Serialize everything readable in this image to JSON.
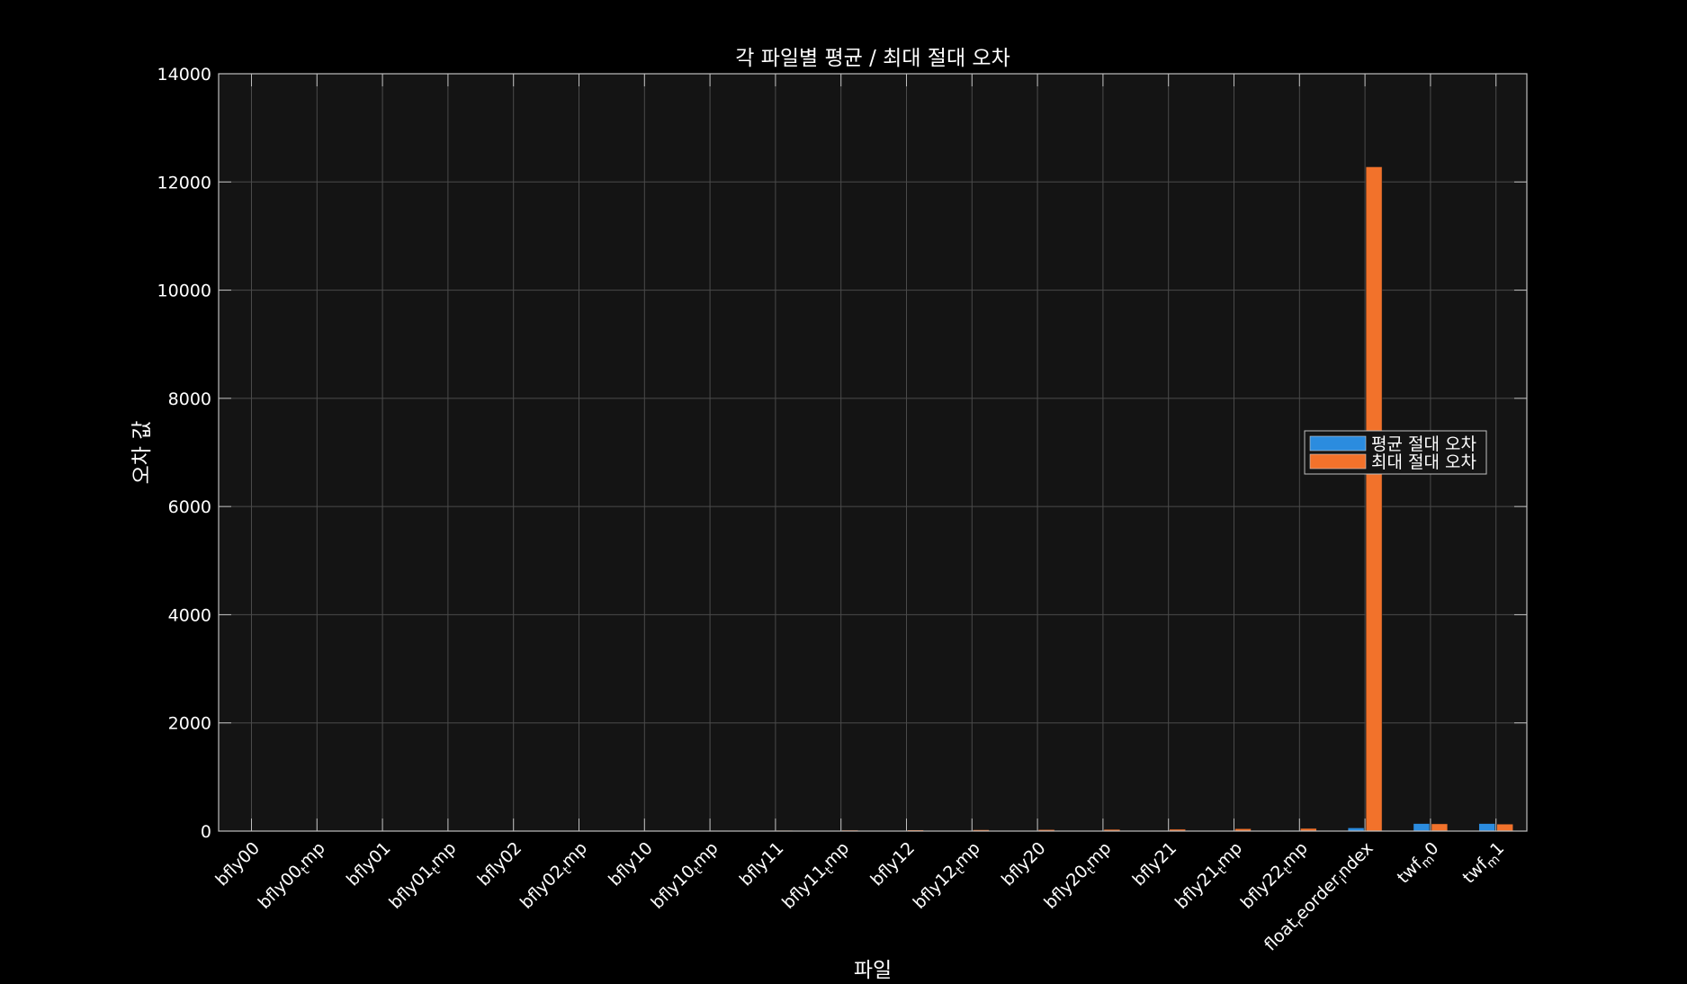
{
  "chart_data": {
    "type": "bar",
    "title": "각 파일별 평균 / 최대 절대 오차",
    "xlabel": "파일",
    "ylabel": "오차 값",
    "ylim": [
      0,
      14000
    ],
    "yticks": [
      0,
      2000,
      4000,
      6000,
      8000,
      10000,
      12000,
      14000
    ],
    "grid": true,
    "legend_position": "right",
    "categories": [
      "bfly00",
      "bfly00_tmp",
      "bfly01",
      "bfly01_tmp",
      "bfly02",
      "bfly02_tmp",
      "bfly10",
      "bfly10_tmp",
      "bfly11",
      "bfly11_tmp",
      "bfly12",
      "bfly12_tmp",
      "bfly20",
      "bfly20_tmp",
      "bfly21",
      "bfly21_tmp",
      "bfly22_tmp",
      "float_reorder_index",
      "twf_m0",
      "twf_m1"
    ],
    "tick_labels": [
      {
        "text": "bfly00"
      },
      {
        "text": "bfly00",
        "sub": "t",
        "rest": "mp"
      },
      {
        "text": "bfly01"
      },
      {
        "text": "bfly01",
        "sub": "t",
        "rest": "mp"
      },
      {
        "text": "bfly02"
      },
      {
        "text": "bfly02",
        "sub": "t",
        "rest": "mp"
      },
      {
        "text": "bfly10"
      },
      {
        "text": "bfly10",
        "sub": "t",
        "rest": "mp"
      },
      {
        "text": "bfly11"
      },
      {
        "text": "bfly11",
        "sub": "t",
        "rest": "mp"
      },
      {
        "text": "bfly12"
      },
      {
        "text": "bfly12",
        "sub": "t",
        "rest": "mp"
      },
      {
        "text": "bfly20"
      },
      {
        "text": "bfly20",
        "sub": "t",
        "rest": "mp"
      },
      {
        "text": "bfly21"
      },
      {
        "text": "bfly21",
        "sub": "t",
        "rest": "mp"
      },
      {
        "text": "bfly22",
        "sub": "t",
        "rest": "mp"
      },
      {
        "text": "float",
        "sub": "r",
        "rest": "eorder",
        "sub2": "i",
        "rest2": "ndex"
      },
      {
        "text": "twf",
        "sub": "m",
        "rest": "0"
      },
      {
        "text": "twf",
        "sub": "m",
        "rest": "1"
      }
    ],
    "series": [
      {
        "name": "평균 절대 오차",
        "color": "#2B8CDF",
        "values": [
          0,
          0,
          0,
          0,
          0,
          1,
          1,
          2,
          3,
          3,
          5,
          5,
          5,
          6,
          8,
          8,
          10,
          60,
          140,
          140
        ]
      },
      {
        "name": "최대 절대 오차",
        "color": "#F2722B",
        "values": [
          2,
          3,
          3,
          4,
          5,
          7,
          8,
          12,
          15,
          18,
          22,
          25,
          28,
          32,
          35,
          45,
          50,
          12280,
          135,
          130
        ]
      }
    ],
    "colors": {
      "background": "#000000",
      "plot_background": "#141414",
      "grid": "#4a4a4a",
      "axis": "#bfbfbf",
      "text": "#ffffff"
    }
  }
}
